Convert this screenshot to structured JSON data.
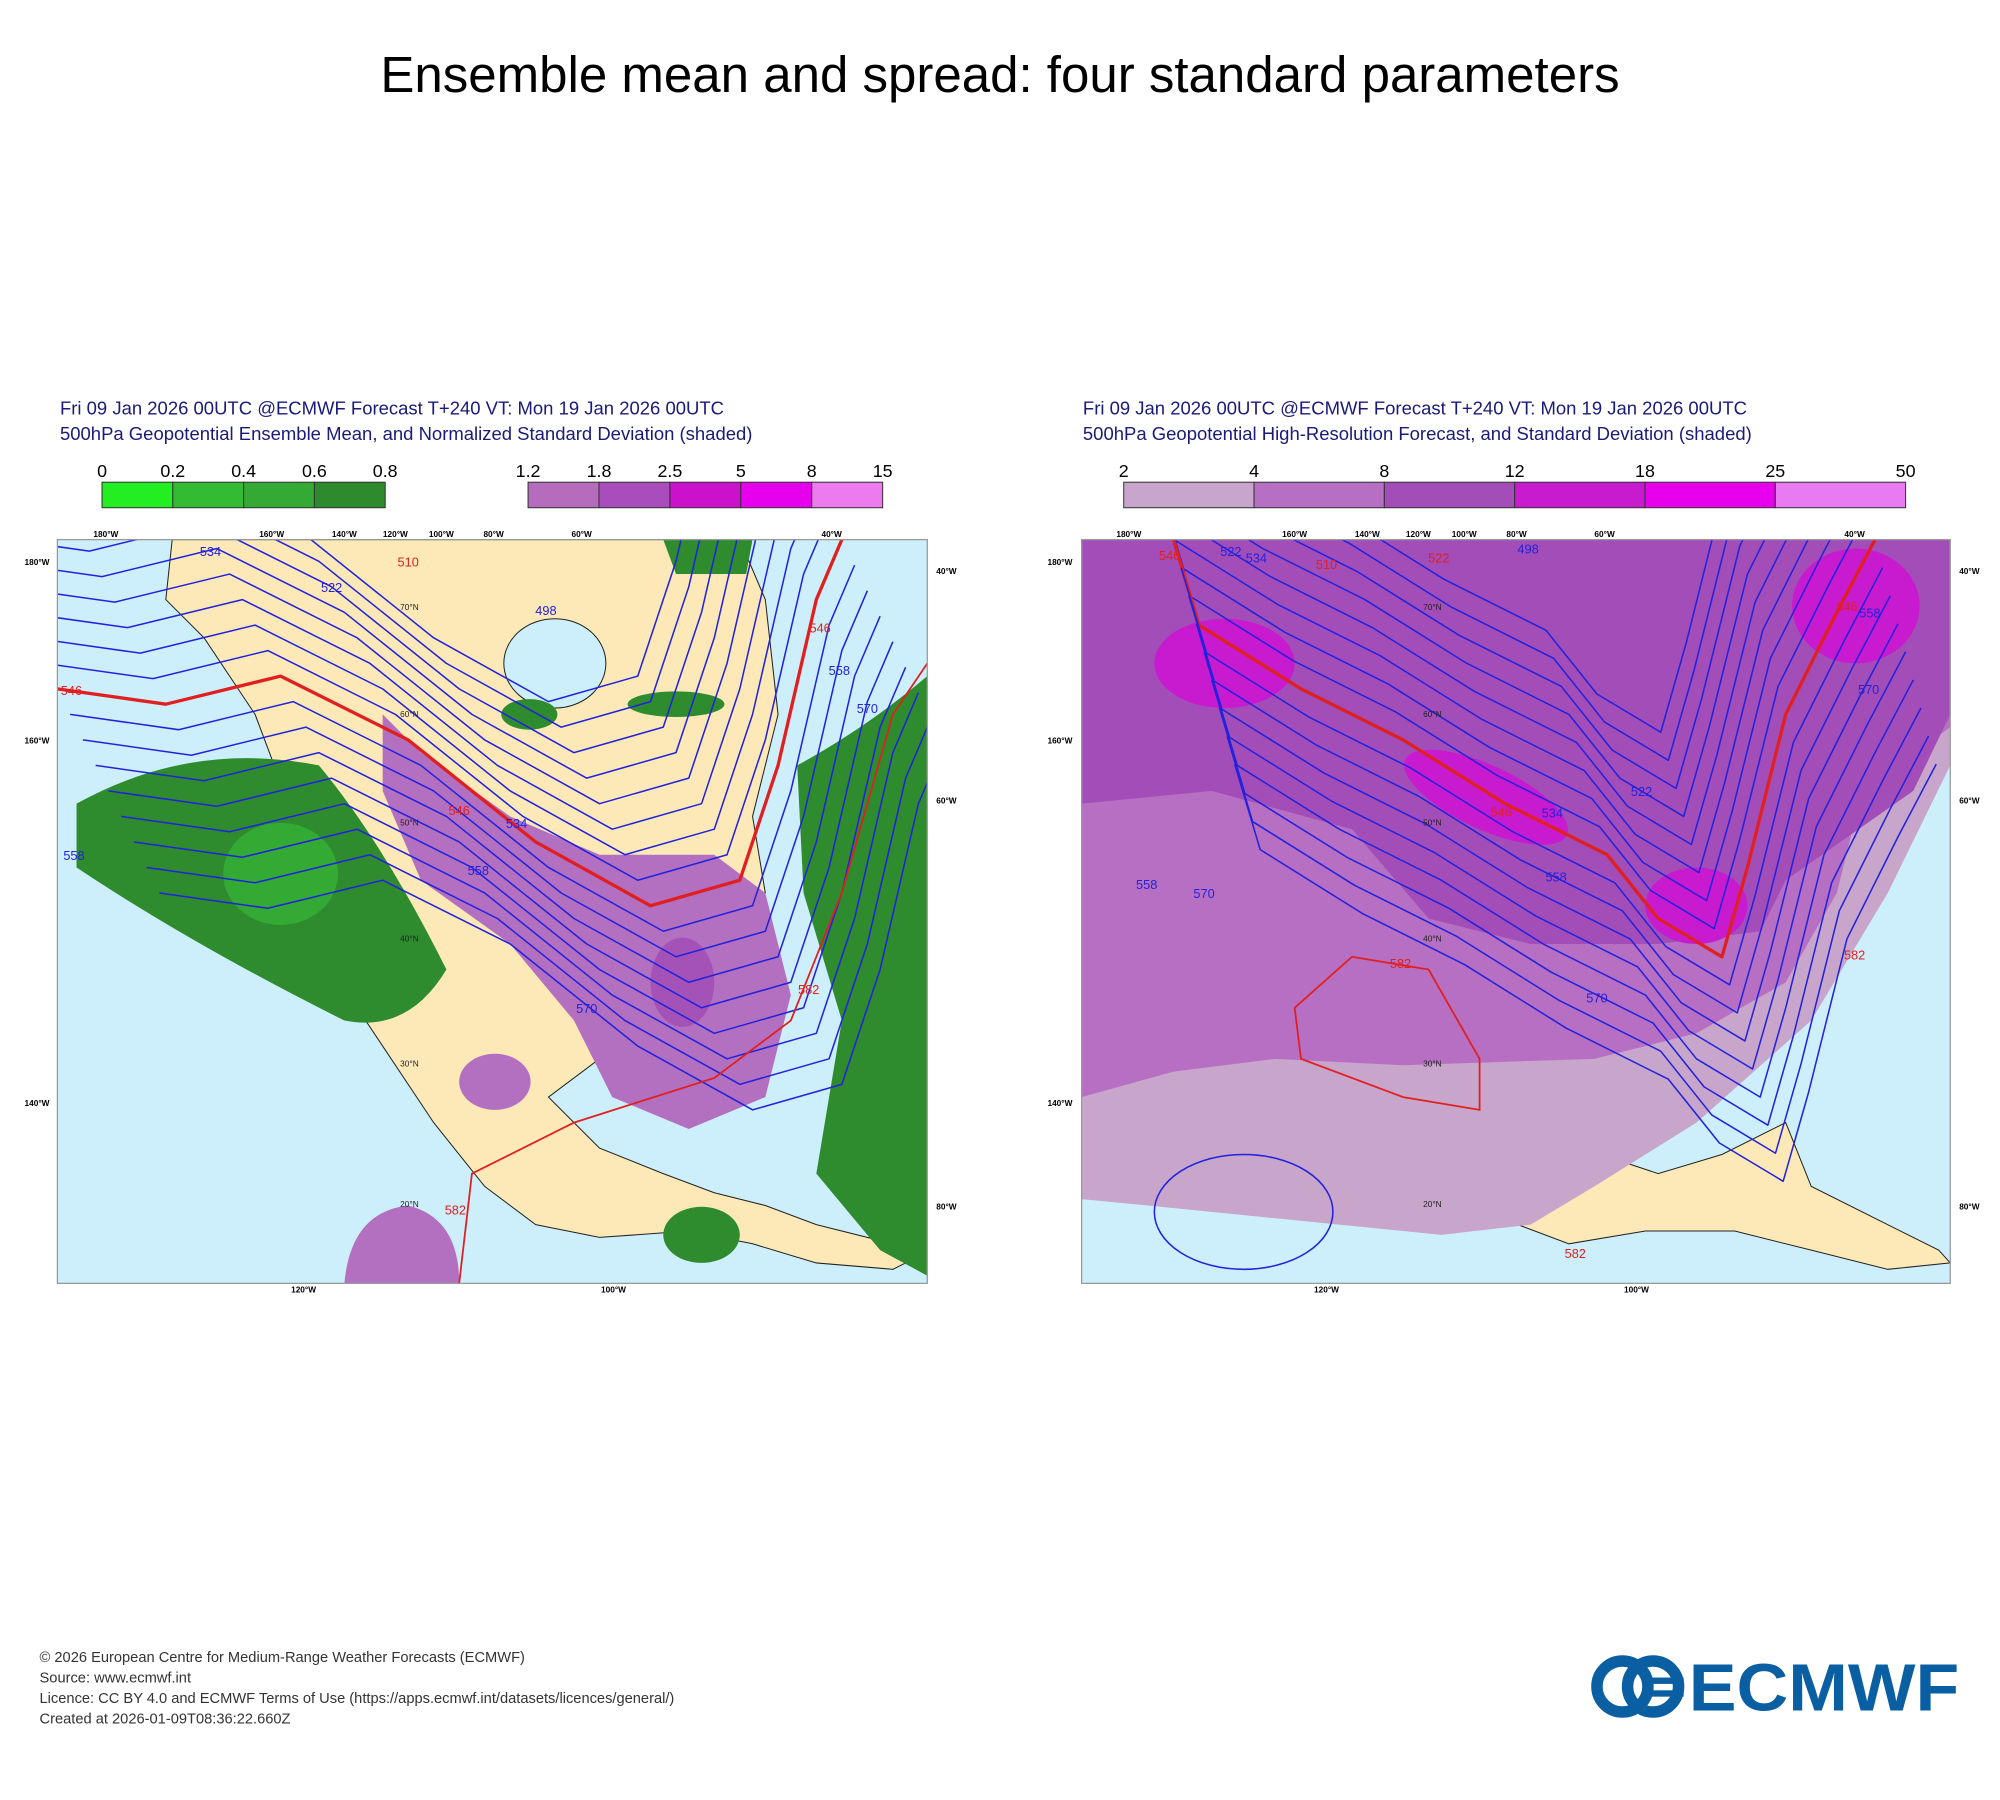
{
  "title": "Ensemble mean and spread: four standard parameters",
  "panels": [
    {
      "header": [
        "Fri 09 Jan 2026 00UTC @ECMWF Forecast T+240 VT: Mon 19 Jan 2026 00UTC",
        "500hPa Geopotential Ensemble Mean, and Normalized Standard Deviation (shaded)"
      ],
      "colorbars": [
        {
          "ticks": [
            0,
            0.2,
            0.4,
            0.6,
            0.8
          ],
          "colors": [
            "#22ee22",
            "#33bb33",
            "#33aa33",
            "#2d8a2d"
          ]
        },
        {
          "ticks": [
            1.2,
            1.8,
            2.5,
            5,
            8,
            15
          ],
          "colors": [
            "#b56cbd",
            "#a94cbc",
            "#cc11cc",
            "#e600ee",
            "#ee7af0"
          ]
        }
      ],
      "map": {
        "lon_labels": [
          "180°W",
          "160°W",
          "140°W",
          "120°W",
          "100°W",
          "80°W",
          "60°W",
          "40°W",
          "180°W",
          "160°W",
          "140°W",
          "40°W",
          "60°W",
          "80°W",
          "120°W",
          "100°W"
        ],
        "lat_labels": [
          "70°N",
          "60°N",
          "50°N",
          "40°N",
          "30°N",
          "20°N"
        ],
        "contour_labels": [
          "546",
          "546",
          "546",
          "534",
          "558",
          "558",
          "570",
          "570",
          "582",
          "558",
          "582",
          "498",
          "522",
          "534",
          "510"
        ]
      }
    },
    {
      "header": [
        "Fri 09 Jan 2026 00UTC @ECMWF Forecast T+240 VT: Mon 19 Jan 2026 00UTC",
        "500hPa Geopotential High-Resolution Forecast, and Standard Deviation (shaded)"
      ],
      "colorbars": [
        {
          "ticks": [
            2,
            4,
            8,
            12,
            18,
            25,
            50
          ],
          "colors": [
            "#c8a5ca",
            "#b66fc2",
            "#a34db8",
            "#c81acf",
            "#e800ec",
            "#e87af2"
          ]
        }
      ],
      "map": {
        "lon_labels": [
          "180°W",
          "160°W",
          "140°W",
          "120°W",
          "100°W",
          "80°W",
          "60°W",
          "40°W",
          "180°W",
          "160°W",
          "140°W",
          "40°W",
          "60°W",
          "80°W",
          "120°W",
          "100°W"
        ],
        "lat_labels": [
          "70°N",
          "60°N",
          "50°N",
          "40°N",
          "30°N",
          "20°N"
        ],
        "contour_labels": [
          "546",
          "522",
          "534",
          "510",
          "522",
          "498",
          "546",
          "534",
          "558",
          "522",
          "546",
          "558",
          "570",
          "558",
          "570",
          "582",
          "570",
          "582",
          "582"
        ]
      }
    }
  ],
  "footer": [
    "© 2026 European Centre for Medium-Range Weather Forecasts (ECMWF)",
    "Source: www.ecmwf.int",
    "Licence: CC BY 4.0 and ECMWF Terms of Use (https://apps.ecmwf.int/datasets/licences/general/)",
    "Created at 2026-01-09T08:36:22.660Z"
  ],
  "logo": "ECMWF"
}
